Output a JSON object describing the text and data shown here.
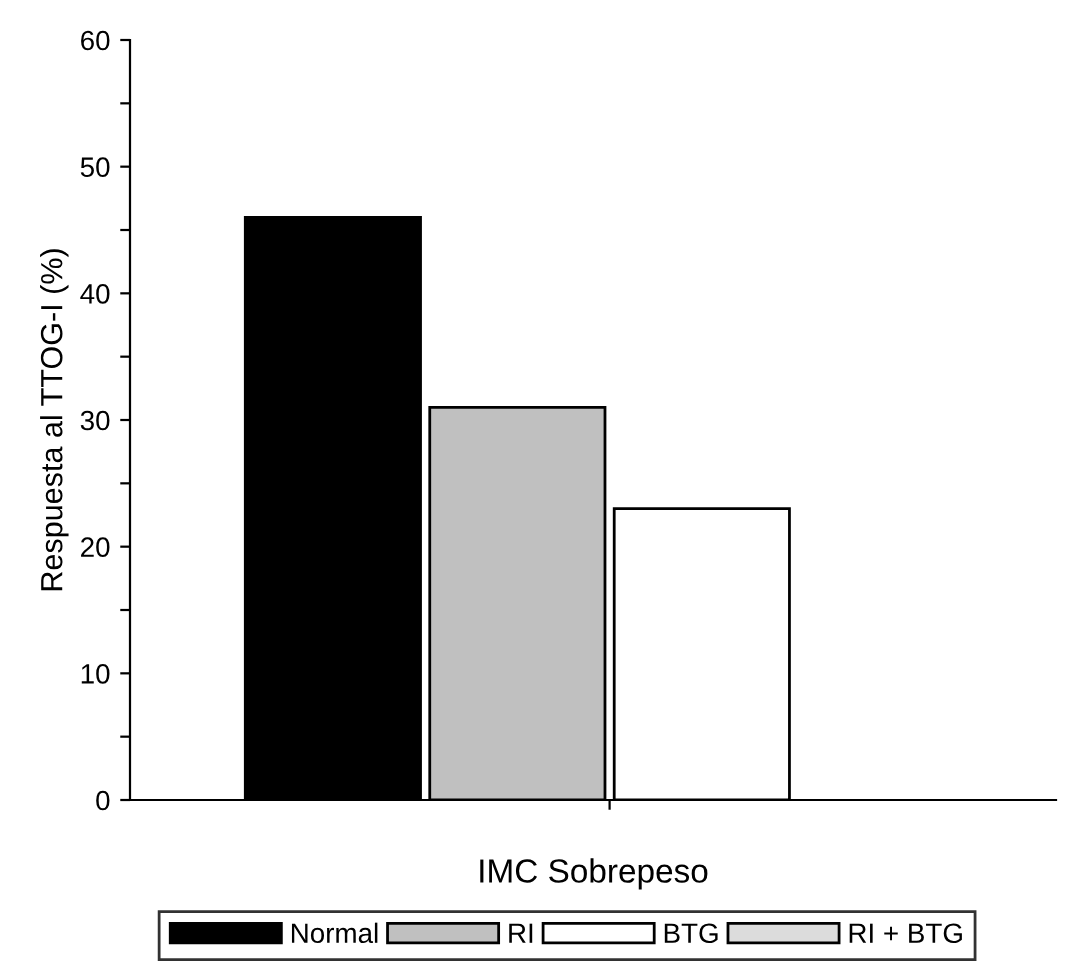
{
  "chart_data": {
    "type": "bar",
    "xlabel": "IMC Sobrepeso",
    "ylabel": "Respuesta al TTOG-I (%)",
    "categories": [
      null
    ],
    "series": [
      {
        "name": "Normal",
        "color": "#000000",
        "values": [
          46
        ]
      },
      {
        "name": "RI",
        "color": "#c0c0c0",
        "values": [
          31
        ]
      },
      {
        "name": "BTG",
        "color": "#ffffff",
        "values": [
          23
        ]
      },
      {
        "name": "RI + BTG",
        "color": "#dcdcdc",
        "values": [
          null
        ]
      }
    ],
    "ylim": [
      0,
      60
    ],
    "yticks": [
      0,
      {
        "value": 5,
        "label": null
      },
      10,
      {
        "value": 15,
        "label": null
      },
      20,
      {
        "value": 25,
        "label": null
      },
      30,
      {
        "value": 35,
        "label": null
      },
      40,
      {
        "value": 45,
        "label": null
      },
      50,
      {
        "value": 55,
        "label": null
      },
      60
    ],
    "grid": false,
    "legend": "bottom"
  }
}
